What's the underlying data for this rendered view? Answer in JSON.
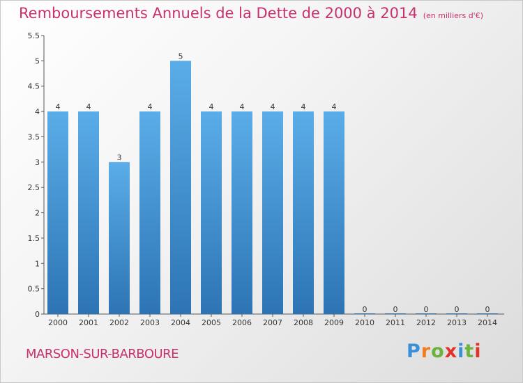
{
  "title": "Remboursements Annuels de la Dette de 2000 à 2014",
  "subtitle": "(en milliers d'€)",
  "commune": "MARSON-SUR-BARBOURE",
  "logo": {
    "letters": [
      "P",
      "r",
      "o",
      "x",
      "i",
      "t",
      "i"
    ],
    "colors": [
      "#3a8fd8",
      "#f07d1e",
      "#6cb33e",
      "#e2332b",
      "#3a8fd8",
      "#6cb33e",
      "#e2332b"
    ]
  },
  "chart_data": {
    "type": "bar",
    "title": "Remboursements Annuels de la Dette de 2000 à 2014",
    "subtitle": "(en milliers d'€)",
    "categories": [
      "2000",
      "2001",
      "2002",
      "2003",
      "2004",
      "2005",
      "2006",
      "2007",
      "2008",
      "2009",
      "2010",
      "2011",
      "2012",
      "2013",
      "2014"
    ],
    "values": [
      4,
      4,
      3,
      4,
      5,
      4,
      4,
      4,
      4,
      4,
      0,
      0,
      0,
      0,
      0
    ],
    "value_labels": [
      "4",
      "4",
      "3",
      "4",
      "5",
      "4",
      "4",
      "4",
      "4",
      "4",
      "0",
      "0",
      "0",
      "0",
      "0"
    ],
    "yticks": [
      "0",
      "0.5",
      "1",
      "1.5",
      "2",
      "2.5",
      "3",
      "3.5",
      "4",
      "4.5",
      "5",
      "5.5"
    ],
    "ylim": [
      0,
      5.5
    ],
    "grid": false,
    "bar_color": "#4b9fe0"
  }
}
